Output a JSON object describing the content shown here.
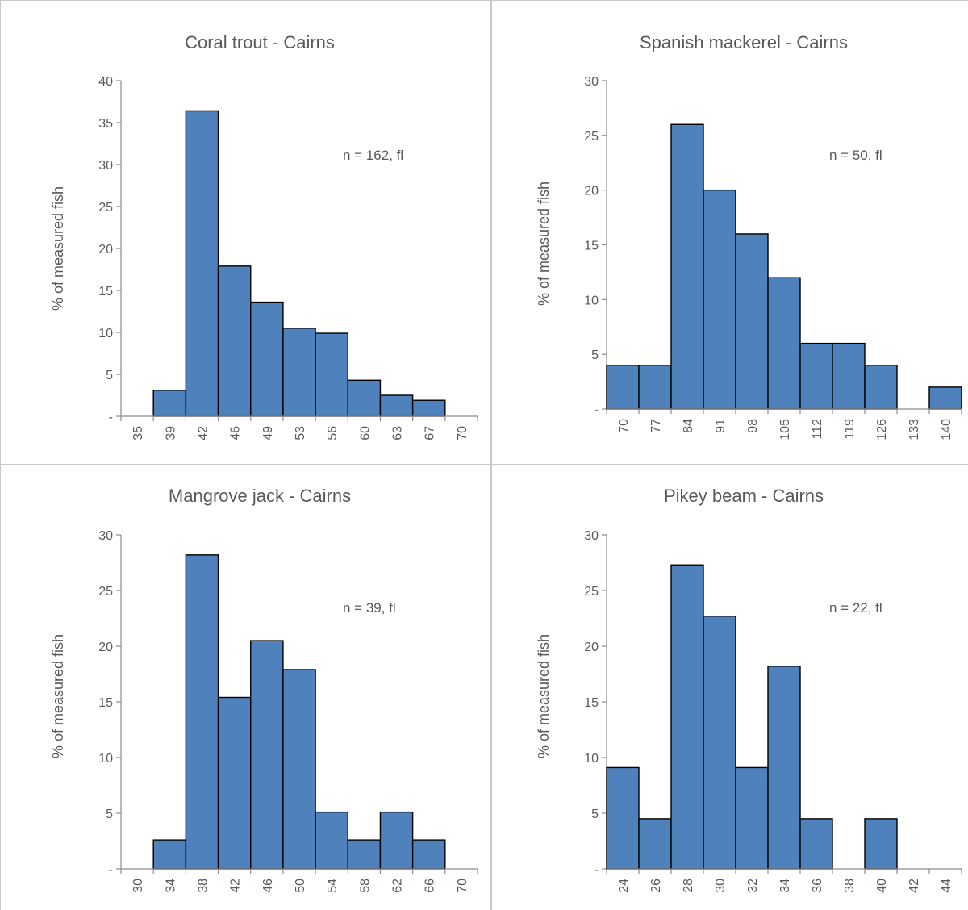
{
  "charts": [
    {
      "title": "Coral trout - Cairns",
      "ylabel": "% of measured fish",
      "annotation": "n = 162, fl",
      "y_ticks": [
        "-",
        "5",
        "10",
        "15",
        "20",
        "25",
        "30",
        "35",
        "40"
      ],
      "x_ticks": [
        "35",
        "39",
        "42",
        "46",
        "49",
        "53",
        "56",
        "60",
        "63",
        "67",
        "70"
      ]
    },
    {
      "title": "Spanish mackerel - Cairns",
      "ylabel": "% of measured fish",
      "annotation": "n = 50, fl",
      "y_ticks": [
        "-",
        "5",
        "10",
        "15",
        "20",
        "25",
        "30"
      ],
      "x_ticks": [
        "70",
        "77",
        "84",
        "91",
        "98",
        "105",
        "112",
        "119",
        "126",
        "133",
        "140"
      ]
    },
    {
      "title": "Mangrove jack - Cairns",
      "ylabel": "% of measured fish",
      "annotation": "n = 39, fl",
      "y_ticks": [
        "-",
        "5",
        "10",
        "15",
        "20",
        "25",
        "30"
      ],
      "x_ticks": [
        "30",
        "34",
        "38",
        "42",
        "46",
        "50",
        "54",
        "58",
        "62",
        "66",
        "70"
      ]
    },
    {
      "title": "Pikey beam - Cairns",
      "ylabel": "% of measured fish",
      "annotation": "n = 22, fl",
      "y_ticks": [
        "-",
        "5",
        "10",
        "15",
        "20",
        "25",
        "30"
      ],
      "x_ticks": [
        "24",
        "26",
        "28",
        "30",
        "32",
        "34",
        "36",
        "38",
        "40",
        "42",
        "44"
      ]
    }
  ],
  "chart_data": [
    {
      "type": "bar",
      "title": "Coral trout - Cairns",
      "ylabel": "% of measured fish",
      "xlabel": "",
      "categories": [
        "35",
        "39",
        "42",
        "46",
        "49",
        "53",
        "56",
        "60",
        "63",
        "67",
        "70"
      ],
      "values": [
        0,
        3.1,
        36.4,
        17.9,
        13.6,
        10.5,
        9.9,
        4.3,
        2.5,
        1.9,
        0
      ],
      "ylim": [
        0,
        40
      ],
      "annotation": "n = 162, fl",
      "grid": false,
      "bar_color": "#4f81bd"
    },
    {
      "type": "bar",
      "title": "Spanish mackerel - Cairns",
      "ylabel": "% of measured fish",
      "xlabel": "",
      "categories": [
        "70",
        "77",
        "84",
        "91",
        "98",
        "105",
        "112",
        "119",
        "126",
        "133",
        "140"
      ],
      "values": [
        4,
        4,
        26,
        20,
        16,
        12,
        6,
        6,
        4,
        0,
        2
      ],
      "ylim": [
        0,
        30
      ],
      "annotation": "n = 50, fl",
      "grid": false,
      "bar_color": "#4f81bd"
    },
    {
      "type": "bar",
      "title": "Mangrove jack - Cairns",
      "ylabel": "% of measured fish",
      "xlabel": "",
      "categories": [
        "30",
        "34",
        "38",
        "42",
        "46",
        "50",
        "54",
        "58",
        "62",
        "66",
        "70"
      ],
      "values": [
        0,
        2.6,
        28.2,
        15.4,
        20.5,
        17.9,
        5.1,
        2.6,
        5.1,
        2.6,
        0
      ],
      "ylim": [
        0,
        30
      ],
      "annotation": "n = 39, fl",
      "grid": false,
      "bar_color": "#4f81bd"
    },
    {
      "type": "bar",
      "title": "Pikey beam - Cairns",
      "ylabel": "% of measured fish",
      "xlabel": "",
      "categories": [
        "24",
        "26",
        "28",
        "30",
        "32",
        "34",
        "36",
        "38",
        "40",
        "42",
        "44"
      ],
      "values": [
        9.1,
        4.5,
        27.3,
        22.7,
        9.1,
        18.2,
        4.5,
        0,
        4.5,
        0,
        0
      ],
      "ylim": [
        0,
        30
      ],
      "annotation": "n = 22, fl",
      "grid": false,
      "bar_color": "#4f81bd"
    }
  ]
}
